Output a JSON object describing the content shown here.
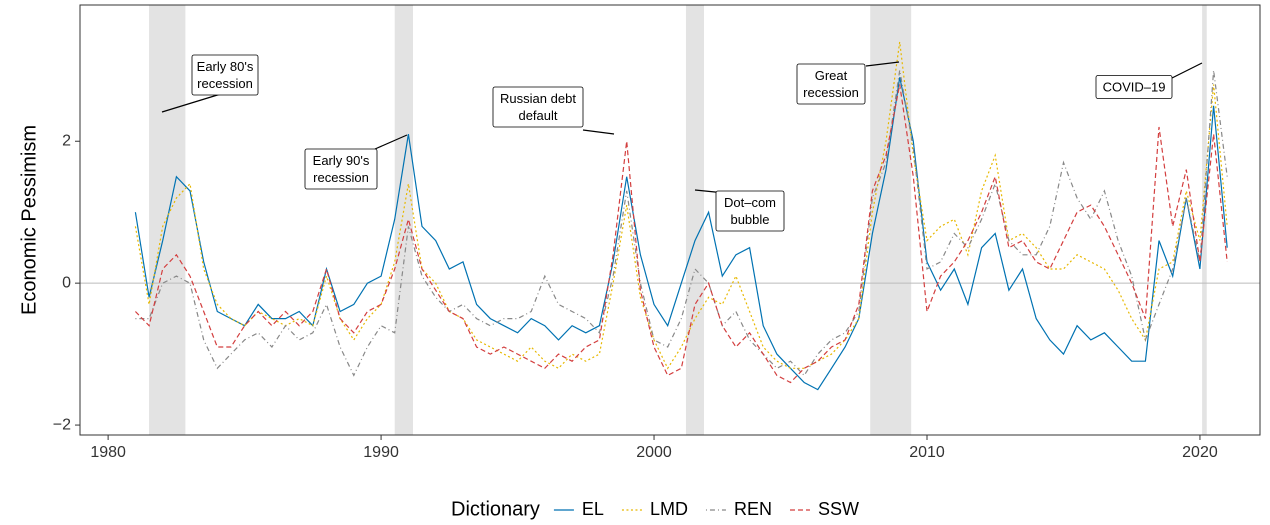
{
  "chart_data": {
    "type": "line",
    "y_label": "Economic Pessimism",
    "x": [
      1981,
      1981.5,
      1982,
      1982.5,
      1983,
      1983.5,
      1984,
      1984.5,
      1985,
      1985.5,
      1986,
      1986.5,
      1987,
      1987.5,
      1988,
      1988.5,
      1989,
      1989.5,
      1990,
      1990.5,
      1991,
      1991.5,
      1992,
      1992.5,
      1993,
      1993.5,
      1994,
      1994.5,
      1995,
      1995.5,
      1996,
      1996.5,
      1997,
      1997.5,
      1998,
      1998.5,
      1999,
      1999.5,
      2000,
      2000.5,
      2001,
      2001.5,
      2002,
      2002.5,
      2003,
      2003.5,
      2004,
      2004.5,
      2005,
      2005.5,
      2006,
      2006.5,
      2007,
      2007.5,
      2008,
      2008.5,
      2009,
      2009.5,
      2010,
      2010.5,
      2011,
      2011.5,
      2012,
      2012.5,
      2013,
      2013.5,
      2014,
      2014.5,
      2015,
      2015.5,
      2016,
      2016.5,
      2017,
      2017.5,
      2018,
      2018.5,
      2019,
      2019.5,
      2020,
      2020.5,
      2021
    ],
    "series": [
      {
        "name": "EL",
        "color": "#0072B2",
        "linestyle": "solid",
        "values": [
          1.0,
          -0.2,
          0.6,
          1.5,
          1.3,
          0.3,
          -0.4,
          -0.5,
          -0.6,
          -0.3,
          -0.5,
          -0.5,
          -0.4,
          -0.6,
          0.2,
          -0.4,
          -0.3,
          0.0,
          0.1,
          0.9,
          2.1,
          0.8,
          0.6,
          0.2,
          0.3,
          -0.3,
          -0.5,
          -0.6,
          -0.7,
          -0.5,
          -0.6,
          -0.8,
          -0.6,
          -0.7,
          -0.6,
          0.3,
          1.5,
          0.4,
          -0.3,
          -0.6,
          0.0,
          0.6,
          1.0,
          0.1,
          0.4,
          0.5,
          -0.6,
          -1.0,
          -1.2,
          -1.4,
          -1.5,
          -1.2,
          -0.9,
          -0.5,
          0.7,
          1.6,
          2.9,
          2.0,
          0.3,
          -0.1,
          0.2,
          -0.3,
          0.5,
          0.7,
          -0.1,
          0.2,
          -0.5,
          -0.8,
          -1.0,
          -0.6,
          -0.8,
          -0.7,
          -0.9,
          -1.1,
          -1.1,
          0.6,
          0.1,
          1.2,
          0.2,
          2.5,
          0.5
        ]
      },
      {
        "name": "LMD",
        "color": "#E7B800",
        "linestyle": "dotted",
        "values": [
          0.8,
          -0.3,
          0.8,
          1.2,
          1.4,
          0.2,
          -0.3,
          -0.5,
          -0.6,
          -0.4,
          -0.5,
          -0.6,
          -0.5,
          -0.6,
          0.1,
          -0.5,
          -0.8,
          -0.5,
          -0.3,
          0.3,
          1.4,
          0.2,
          0.0,
          -0.4,
          -0.5,
          -0.8,
          -0.9,
          -1.0,
          -1.1,
          -0.9,
          -1.1,
          -1.2,
          -1.0,
          -1.1,
          -1.0,
          0.0,
          1.1,
          -0.2,
          -0.8,
          -1.2,
          -0.9,
          -0.5,
          -0.2,
          -0.3,
          0.1,
          -0.4,
          -0.9,
          -1.1,
          -1.2,
          -1.2,
          -1.1,
          -1.0,
          -0.8,
          -0.5,
          1.0,
          2.0,
          3.4,
          1.8,
          0.6,
          0.8,
          0.9,
          0.4,
          1.3,
          1.8,
          0.6,
          0.7,
          0.5,
          0.2,
          0.2,
          0.4,
          0.3,
          0.2,
          -0.1,
          -0.5,
          -0.8,
          0.2,
          0.3,
          1.3,
          0.6,
          2.8,
          0.8
        ]
      },
      {
        "name": "REN",
        "color": "#888888",
        "linestyle": "dotdash",
        "values": [
          -0.5,
          -0.5,
          0.0,
          0.1,
          0.0,
          -0.8,
          -1.2,
          -1.0,
          -0.8,
          -0.7,
          -0.9,
          -0.6,
          -0.8,
          -0.7,
          -0.3,
          -0.9,
          -1.3,
          -0.9,
          -0.6,
          -0.7,
          0.8,
          0.1,
          -0.2,
          -0.4,
          -0.3,
          -0.5,
          -0.6,
          -0.5,
          -0.5,
          -0.4,
          0.1,
          -0.3,
          -0.4,
          -0.5,
          -0.7,
          0.1,
          1.3,
          0.0,
          -0.8,
          -0.9,
          -0.5,
          0.2,
          0.0,
          -0.6,
          -0.4,
          -0.8,
          -1.0,
          -1.2,
          -1.1,
          -1.3,
          -1.0,
          -0.8,
          -0.7,
          -0.4,
          1.2,
          1.7,
          3.0,
          1.9,
          0.2,
          0.3,
          0.7,
          0.5,
          0.9,
          1.4,
          0.6,
          0.4,
          0.4,
          0.8,
          1.7,
          1.2,
          0.9,
          1.3,
          0.6,
          0.1,
          -0.8,
          -0.3,
          0.2,
          1.2,
          0.3,
          3.0,
          1.5
        ]
      },
      {
        "name": "SSW",
        "color": "#D33F3F",
        "linestyle": "dashed",
        "values": [
          -0.4,
          -0.6,
          0.2,
          0.4,
          0.1,
          -0.4,
          -0.9,
          -0.9,
          -0.6,
          -0.4,
          -0.6,
          -0.4,
          -0.6,
          -0.4,
          0.2,
          -0.5,
          -0.7,
          -0.4,
          -0.3,
          0.2,
          0.9,
          0.2,
          -0.1,
          -0.4,
          -0.5,
          -0.9,
          -1.0,
          -0.9,
          -1.0,
          -1.1,
          -1.2,
          -1.0,
          -1.1,
          -0.9,
          -0.8,
          0.4,
          2.0,
          -0.1,
          -0.9,
          -1.3,
          -1.2,
          -0.3,
          0.0,
          -0.6,
          -0.9,
          -0.7,
          -1.0,
          -1.3,
          -1.4,
          -1.2,
          -1.1,
          -0.9,
          -0.8,
          -0.3,
          1.3,
          1.8,
          2.8,
          1.5,
          -0.4,
          0.1,
          0.3,
          0.6,
          1.0,
          1.5,
          0.5,
          0.6,
          0.3,
          0.2,
          0.6,
          1.0,
          1.1,
          0.8,
          0.4,
          0.0,
          -0.5,
          2.2,
          0.8,
          1.6,
          0.3,
          2.1,
          0.3
        ]
      }
    ],
    "shaded_periods": [
      [
        1981.5,
        1982.83
      ],
      [
        1990.5,
        1991.17
      ],
      [
        2001.17,
        2001.83
      ],
      [
        2007.92,
        2009.42
      ],
      [
        2020.08,
        2020.25
      ]
    ],
    "annotations": [
      {
        "lines": [
          "Early 80's",
          "recession"
        ]
      },
      {
        "lines": [
          "Early 90's",
          "recession"
        ]
      },
      {
        "lines": [
          "Russian debt",
          "default"
        ]
      },
      {
        "lines": [
          "Dot–com",
          "bubble"
        ]
      },
      {
        "lines": [
          "Great",
          "recession"
        ]
      },
      {
        "lines": [
          "COVID–19"
        ]
      }
    ],
    "reference_line": 0,
    "xlim": [
      1978.97,
      2022.2
    ],
    "ylim": [
      -2.14,
      3.92
    ],
    "xticks": [
      1980,
      1990,
      2000,
      2010,
      2020
    ],
    "yticks": [
      {
        "value": -2,
        "label": "−2"
      },
      0,
      2
    ],
    "grid": false,
    "legend": {
      "title": "Dictionary",
      "position": "bottom"
    }
  }
}
